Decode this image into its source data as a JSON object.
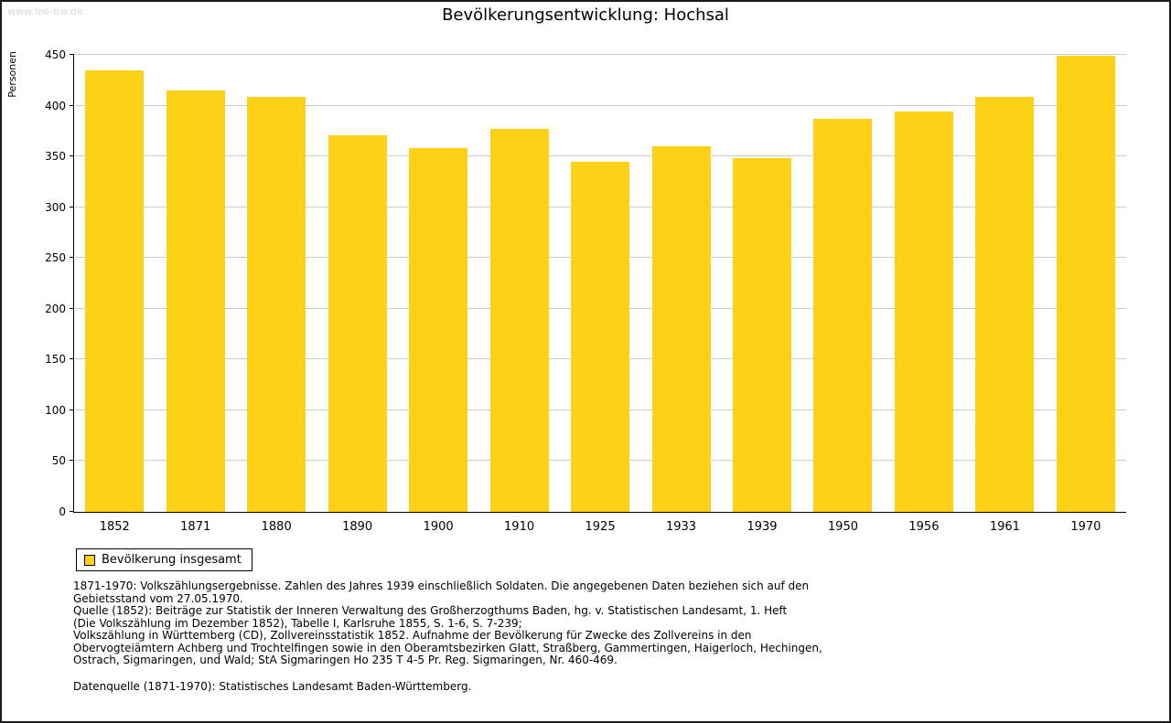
{
  "page": {
    "watermark": "www.leo-bw.de",
    "title": "Bevölkerungsentwicklung: Hochsal"
  },
  "chart_data": {
    "type": "bar",
    "title": "Bevölkerungsentwicklung: Hochsal",
    "xlabel": "",
    "ylabel": "Personen",
    "ylim": [
      0,
      450
    ],
    "ytick_interval": 50,
    "grid": true,
    "bar_color": "#FCD116",
    "categories": [
      "1852",
      "1871",
      "1880",
      "1890",
      "1900",
      "1910",
      "1925",
      "1933",
      "1939",
      "1950",
      "1956",
      "1961",
      "1970"
    ],
    "series": [
      {
        "name": "Bevölkerung insgesamt",
        "values": [
          435,
          415,
          409,
          371,
          358,
          377,
          345,
          360,
          348,
          387,
          394,
          409,
          449
        ]
      }
    ],
    "legend_position": "bottom-left"
  },
  "legend": {
    "label": "Bevölkerung insgesamt"
  },
  "footnotes": {
    "lines": [
      "1871-1970: Volkszählungsergebnisse. Zahlen des Jahres 1939 einschließlich Soldaten. Die angegebenen Daten beziehen sich auf den",
      "Gebietsstand vom 27.05.1970.",
      "Quelle (1852): Beiträge zur Statistik der Inneren Verwaltung des Großherzogthums Baden, hg. v. Statistischen Landesamt, 1. Heft",
      "(Die Volkszählung im Dezember 1852), Tabelle I, Karlsruhe 1855, S. 1-6, S. 7-239;",
      "Volkszählung in Württemberg (CD), Zollvereinsstatistik 1852. Aufnahme der Bevölkerung für Zwecke des Zollvereins in den",
      "Obervogteiämtern Achberg und Trochtelfingen sowie in den Oberamtsbezirken Glatt, Straßberg, Gammertingen, Haigerloch, Hechingen,",
      "Ostrach, Sigmaringen, und Wald; StA Sigmaringen Ho 235 T 4-5 Pr. Reg. Sigmaringen, Nr. 460-469."
    ],
    "source": "Datenquelle (1871-1970): Statistisches Landesamt Baden-Württemberg."
  }
}
